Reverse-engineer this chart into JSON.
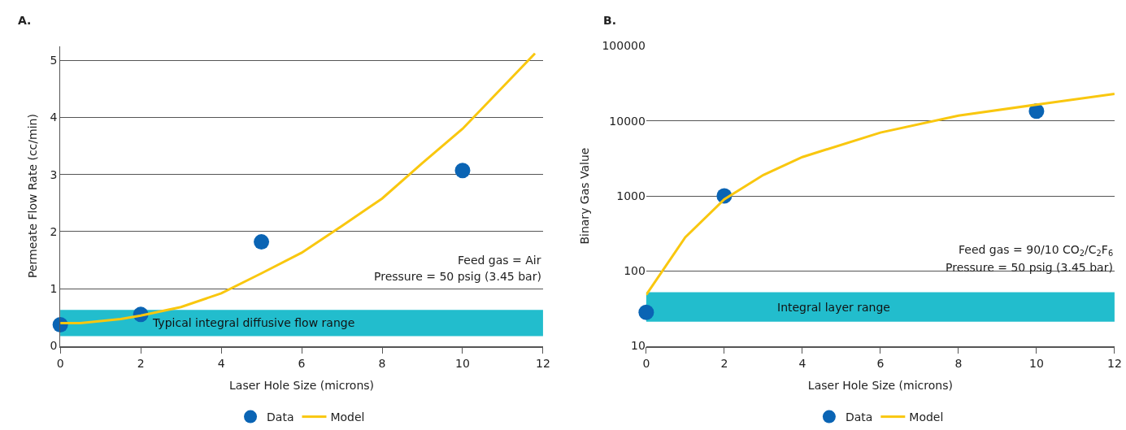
{
  "chart_data": [
    {
      "type": "scatter",
      "title": "A.",
      "xlabel": "Laser Hole Size (microns)",
      "ylabel": "Permeate Flow Rate (cc/min)",
      "series": [
        {
          "name": "Data",
          "color": "#0a64b4",
          "marker": "circle",
          "x": [
            0,
            2,
            5,
            10
          ],
          "values": [
            0.37,
            0.55,
            1.82,
            3.07
          ]
        },
        {
          "name": "Model",
          "type": "line",
          "color": "#f9c70f",
          "marker": "none",
          "x": [
            0,
            0.5,
            1.5,
            2,
            3,
            4,
            5,
            6,
            7,
            8,
            9,
            10,
            11.8
          ],
          "values": [
            0.4,
            0.4,
            0.47,
            0.53,
            0.68,
            0.92,
            1.27,
            1.63,
            2.1,
            2.58,
            3.2,
            3.8,
            5.12
          ]
        }
      ],
      "bands": [
        {
          "axis": "y",
          "from": 0.17,
          "to": 0.63,
          "label": "Typical integral diffusive flow range",
          "color": "#22bdcd"
        }
      ],
      "annotations": [
        "Feed gas = Air",
        "Pressure = 50 psig (3.45 bar)"
      ],
      "xlim": [
        0,
        12
      ],
      "xticks": [
        0,
        2,
        4,
        6,
        8,
        10,
        12
      ],
      "ylim": [
        0,
        5.25
      ],
      "yticks": [
        0,
        1,
        2,
        3,
        4,
        5
      ],
      "grid": "y",
      "legend": "bottom"
    },
    {
      "type": "scatter",
      "title": "B.",
      "xlabel": "Laser Hole Size (microns)",
      "ylabel": "Binary Gas Value",
      "series": [
        {
          "name": "Data",
          "color": "#0a64b4",
          "marker": "circle",
          "x": [
            0,
            2,
            10
          ],
          "values": [
            28,
            1000,
            13500
          ]
        },
        {
          "name": "Model",
          "type": "line",
          "color": "#f9c70f",
          "marker": "none",
          "x": [
            0,
            1,
            2,
            3,
            4,
            6,
            8,
            10,
            12
          ],
          "values": [
            48,
            280,
            900,
            1900,
            3300,
            7000,
            11800,
            16500,
            23000
          ]
        }
      ],
      "bands": [
        {
          "axis": "y",
          "from": 21,
          "to": 52,
          "label": "Integral layer range",
          "color": "#22bdcd"
        }
      ],
      "annotations": [
        "Feed gas = 90/10 CO$_{2}$/C$_{2}$F$_{6}$",
        "Pressure = 50 psig (3.45 bar)"
      ],
      "xlim": [
        0,
        12
      ],
      "xticks": [
        0,
        2,
        4,
        6,
        8,
        10,
        12
      ],
      "ylim": [
        10,
        100000
      ],
      "yticks": [
        10,
        100,
        1000,
        10000,
        100000
      ],
      "log": "y",
      "grid": "y",
      "legend": "bottom"
    }
  ]
}
